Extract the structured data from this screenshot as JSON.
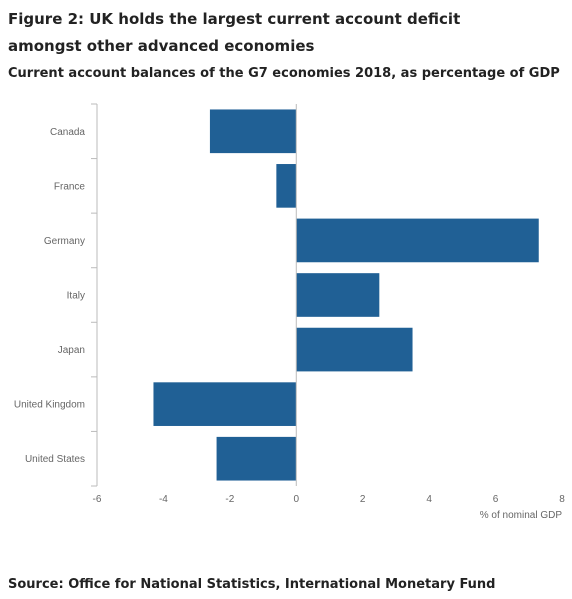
{
  "title": "Figure 2: UK holds the largest current account deficit amongst other advanced economies",
  "subtitle": "Current account balances of the G7 economies 2018, as percentage of GDP",
  "source": "Source: Office for National Statistics, International Monetary Fund",
  "colors": {
    "bar": "#206095",
    "axis": "#bbbbbb",
    "grid": "#e0e0e0",
    "text": "#666666"
  },
  "chart_data": {
    "type": "bar",
    "orientation": "horizontal",
    "categories": [
      "Canada",
      "France",
      "Germany",
      "Italy",
      "Japan",
      "United Kingdom",
      "United States"
    ],
    "values": [
      -2.6,
      -0.6,
      7.3,
      2.5,
      3.5,
      -4.3,
      -2.4
    ],
    "xlabel": "% of nominal GDP",
    "ylabel": "",
    "xlim": [
      -6,
      8
    ],
    "xticks": [
      "-6",
      "-4",
      "-2",
      "0",
      "2",
      "4",
      "6",
      "8"
    ],
    "grid": false
  }
}
